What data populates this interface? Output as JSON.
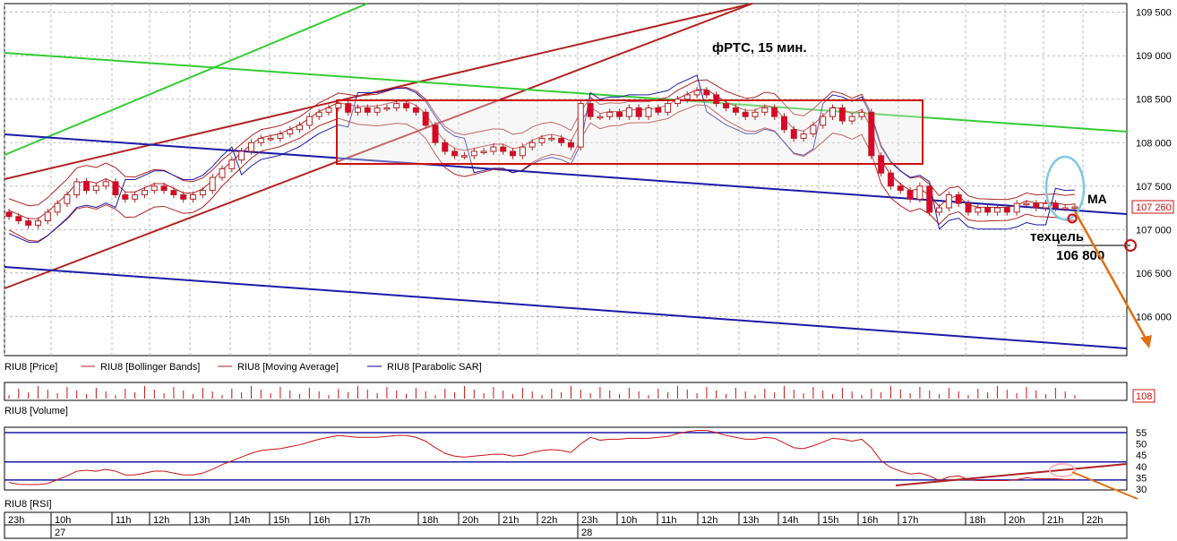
{
  "title": "фРТС, 15 мин.",
  "annotations": {
    "ma": "MA",
    "target_label": "техцель",
    "target_value": "106 800",
    "last_price": "107 260",
    "volume_value": "108"
  },
  "legend": [
    {
      "label": "RIU8 [Price]",
      "color": "#b22222"
    },
    {
      "label": "RIU8 [Bollinger Bands]",
      "color": "#b22222"
    },
    {
      "label": "RIU8 [Moving Average]",
      "color": "#b22222"
    },
    {
      "label": "RIU8 [Parabolic SAR]",
      "color": "#00008b"
    }
  ],
  "panels": {
    "volume": "RIU8 [Volume]",
    "rsi": "RIU8 [RSI]"
  },
  "colors": {
    "bear": "#e0002a",
    "bull": "#ffffff",
    "wick": "#b22222",
    "trend_red": "#b22222",
    "trend_green": "#33cc33",
    "trend_blue": "#1a1aa8",
    "forecast": "#e07010",
    "ellipse": "#7ec8e3"
  },
  "chart_data": [
    {
      "type": "candlestick",
      "title": "фРТС, 15 мин.",
      "ylim": [
        105550,
        109600
      ],
      "y_ticks": [
        106000,
        106500,
        107000,
        107500,
        108000,
        108500,
        109000,
        109500
      ],
      "y_tick_labels": [
        "106 000",
        "106 500",
        "107 000",
        "107 500",
        "108 000",
        "108 500",
        "109 000",
        "109 500"
      ],
      "x_tick_labels": [
        "23h",
        "10h",
        "11h",
        "12h",
        "13h",
        "14h",
        "15h",
        "16h",
        "17h",
        "18h",
        "20h",
        "21h",
        "22h",
        "23h",
        "10h",
        "11h",
        "12h",
        "13h",
        "14h",
        "15h",
        "16h",
        "17h",
        "18h",
        "20h",
        "21h",
        "22h"
      ],
      "day_labels": [
        "27",
        "28"
      ],
      "series": [
        {
          "name": "RIU8 [Price]",
          "close": [
            107150,
            107100,
            107050,
            107100,
            107200,
            107300,
            107400,
            107550,
            107450,
            107500,
            107550,
            107400,
            107350,
            107400,
            107450,
            107500,
            107450,
            107400,
            107350,
            107400,
            107450,
            107600,
            107700,
            107800,
            107900,
            108000,
            108050,
            108050,
            108100,
            108150,
            108200,
            108300,
            108350,
            108400,
            108450,
            108350,
            108400,
            108350,
            108400,
            108400,
            108450,
            108400,
            108350,
            108200,
            108000,
            107900,
            107850,
            107850,
            107900,
            107900,
            107950,
            107900,
            107850,
            107950,
            108000,
            108050,
            108050,
            108000,
            107950,
            108450,
            108300,
            108300,
            108350,
            108300,
            108400,
            108300,
            108400,
            108350,
            108450,
            108500,
            108550,
            108600,
            108550,
            108450,
            108400,
            108350,
            108300,
            108350,
            108400,
            108300,
            108150,
            108050,
            108100,
            108200,
            108300,
            108400,
            108250,
            108300,
            108350,
            107850,
            107650,
            107500,
            107450,
            107350,
            107500,
            107200,
            107250,
            107400,
            107300,
            107200,
            107250,
            107200,
            107250,
            107200,
            107300,
            107300,
            107250,
            107300,
            107250,
            107250,
            107260
          ],
          "open": [
            107200,
            107150,
            107100,
            107050,
            107100,
            107200,
            107300,
            107400,
            107550,
            107450,
            107500,
            107550,
            107400,
            107350,
            107400,
            107450,
            107500,
            107450,
            107400,
            107350,
            107400,
            107450,
            107600,
            107700,
            107800,
            107900,
            108000,
            108050,
            108050,
            108100,
            108150,
            108200,
            108300,
            108350,
            108400,
            108450,
            108350,
            108400,
            108350,
            108400,
            108400,
            108450,
            108400,
            108350,
            108200,
            108000,
            107900,
            107850,
            107850,
            107900,
            107900,
            107950,
            107900,
            107850,
            107950,
            108000,
            108050,
            108050,
            108000,
            107950,
            108450,
            108300,
            108300,
            108350,
            108300,
            108400,
            108300,
            108400,
            108350,
            108450,
            108500,
            108550,
            108600,
            108550,
            108450,
            108400,
            108350,
            108300,
            108350,
            108400,
            108300,
            108150,
            108050,
            108100,
            108200,
            108300,
            108400,
            108250,
            108300,
            108350,
            107850,
            107650,
            107500,
            107450,
            107350,
            107500,
            107200,
            107250,
            107400,
            107300,
            107200,
            107250,
            107200,
            107250,
            107200,
            107300,
            107300,
            107250,
            107300,
            107250,
            107250
          ]
        }
      ],
      "indicators": [
        "Bollinger Bands",
        "Moving Average",
        "Parabolic SAR"
      ],
      "forecast_target": 106800
    },
    {
      "type": "bar",
      "title": "RIU8 [Volume]",
      "last_value": 108
    },
    {
      "type": "line",
      "title": "RIU8 [RSI]",
      "ylim": [
        30,
        57
      ],
      "y_ticks": [
        30,
        35,
        40,
        45,
        50,
        55
      ],
      "levels": [
        34,
        42,
        55
      ]
    }
  ]
}
